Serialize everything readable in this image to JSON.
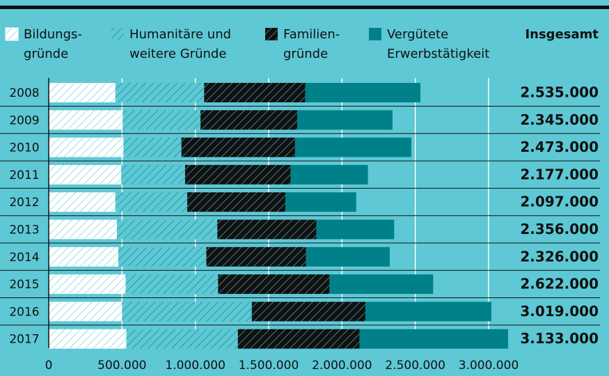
{
  "chart_data": {
    "type": "stacked-bar-horizontal",
    "categories": [
      "2008",
      "2009",
      "2010",
      "2011",
      "2012",
      "2013",
      "2014",
      "2015",
      "2016",
      "2017"
    ],
    "series": [
      {
        "name": "Bildungs-\ngründe",
        "color": "#ffffff",
        "hatch": "#5ec8d5",
        "values": [
          455000,
          505000,
          510000,
          495000,
          455000,
          465000,
          475000,
          525000,
          500000,
          530000
        ]
      },
      {
        "name": "Humanitäre und\nweitere Gründe",
        "color": "#5ec8d5",
        "hatch": "#00818a",
        "values": [
          605000,
          530000,
          395000,
          435000,
          490000,
          685000,
          600000,
          630000,
          885000,
          760000
        ]
      },
      {
        "name": "Familien-\ngründe",
        "color": "#111111",
        "hatch": "#5ec8d5",
        "values": [
          690000,
          660000,
          775000,
          720000,
          670000,
          675000,
          680000,
          760000,
          775000,
          830000
        ]
      },
      {
        "name": "Vergütete\nErwerbstätigkeit",
        "color": "#00818a",
        "hatch": null,
        "values": [
          785000,
          650000,
          793000,
          527000,
          482000,
          531000,
          571000,
          707000,
          859000,
          1013000
        ]
      }
    ],
    "totals_title": "Insgesamt",
    "total_labels": [
      "2.535.000",
      "2.345.000",
      "2.473.000",
      "2.177.000",
      "2.097.000",
      "2.356.000",
      "2.326.000",
      "2.622.000",
      "3.019.000",
      "3.133.000"
    ],
    "xlim": [
      0,
      3000000
    ],
    "xticks": [
      0,
      {
        "value": 500000,
        "label": "500.000"
      },
      {
        "value": 1000000,
        "label": "1.000.000"
      },
      {
        "value": 1500000,
        "label": "1.500.000"
      },
      {
        "value": 2000000,
        "label": "2.000.000"
      },
      {
        "value": 2500000,
        "label": "2.500.000"
      },
      {
        "value": 3000000,
        "label": "3.000.000"
      }
    ],
    "grid": true
  }
}
